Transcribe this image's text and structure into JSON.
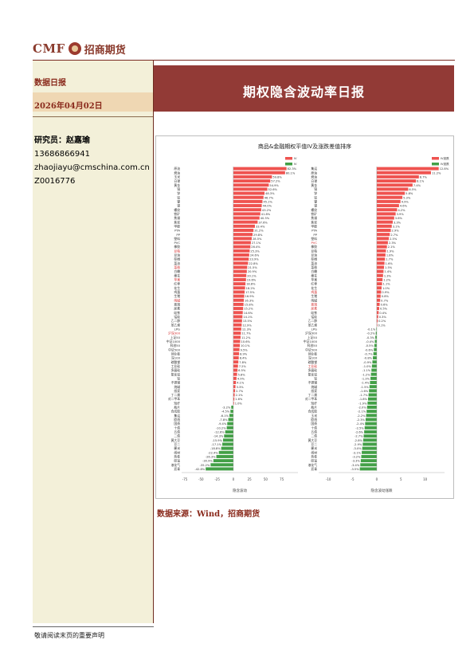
{
  "header": {
    "logo_cmf": "CMF",
    "logo_cn": "招商期货",
    "banner_title": "期权隐含波动率日报"
  },
  "sidebar": {
    "doc_type": "数据日报",
    "date": "2026年04月02日",
    "analyst_label": "研究员：赵嘉瑜",
    "phone": "13686866941",
    "email": "zhaojiayu@cmschina.com.cn",
    "license": "Z0016776"
  },
  "colors": {
    "banner": "#923a36",
    "positive": "#ef5350",
    "negative": "#43a047",
    "sidebar_bg": "#f3f0d9",
    "sidebar_band": "#efd7b3",
    "accent_text": "#8a2a1c"
  },
  "source": "数据来源：Wind，招商期货",
  "footer": "敬请阅读末页的重要声明",
  "chart_data": {
    "type": "bar",
    "title": "商品&金融期权平值IV及涨跌差值排序",
    "panels": [
      {
        "legend": [
          "IV",
          "IV"
        ],
        "xlabel": "隐含波动",
        "xlim": [
          -80,
          100
        ],
        "xticks": [
          -75,
          -50,
          -25,
          0,
          25,
          50,
          75
        ],
        "values": [
          82.3,
          80.1,
          59.8,
          57.2,
          54.9,
          52.6,
          48.3,
          46.7,
          45.1,
          44.0,
          43.2,
          41.8,
          40.5,
          37.6,
          33.4,
          31.2,
          29.8,
          28.5,
          27.1,
          26.4,
          25.3,
          24.6,
          23.9,
          22.8,
          21.5,
          20.9,
          20.1,
          19.6,
          18.8,
          18.2,
          17.5,
          16.9,
          16.3,
          15.8,
          15.2,
          14.6,
          14.1,
          13.5,
          12.9,
          12.3,
          11.7,
          11.2,
          10.6,
          10.1,
          9.5,
          8.9,
          8.4,
          7.8,
          7.2,
          6.5,
          5.8,
          4.9,
          4.1,
          3.3,
          2.7,
          2.1,
          1.6,
          1.0,
          -3.2,
          -4.5,
          -6.1,
          -7.8,
          -9.4,
          -10.2,
          -12.6,
          -14.3,
          -15.9,
          -17.1,
          -18.8,
          -22.4,
          -26.3,
          -30.9,
          -35.2,
          -42.8
        ],
        "value_labels": [
          "82.3%",
          "80.1%",
          "59.8%",
          "57.2%",
          "54.9%",
          "52.6%",
          "48.3%",
          "46.7%",
          "45.1%",
          "44.0%",
          "43.2%",
          "41.8%",
          "40.5%",
          "37.6%",
          "33.4%",
          "31.2%",
          "29.8%",
          "28.5%",
          "27.1%",
          "26.4%",
          "25.3%",
          "24.6%",
          "23.9%",
          "22.8%",
          "21.5%",
          "20.9%",
          "20.1%",
          "19.6%",
          "18.8%",
          "18.2%",
          "17.5%",
          "16.9%",
          "16.3%",
          "15.8%",
          "15.2%",
          "14.6%",
          "14.1%",
          "13.5%",
          "12.9%",
          "12.3%",
          "11.7%",
          "11.2%",
          "10.6%",
          "10.1%",
          "9.5%",
          "8.9%",
          "8.4%",
          "7.8%",
          "7.2%",
          "6.5%",
          "5.8%",
          "4.9%",
          "4.1%",
          "3.3%",
          "2.7%",
          "2.1%",
          "1.6%",
          "1.0%",
          "-3.2%",
          "-4.5%",
          "-6.1%",
          "-7.8%",
          "-9.4%",
          "-10.2%",
          "-12.6%",
          "-14.3%",
          "-15.9%",
          "-17.1%",
          "-18.8%",
          "-22.4%",
          "-26.3%",
          "-30.9%",
          "-35.2%",
          "-42.8%"
        ],
        "categories": [
          "原油",
          "燃油",
          "玉米",
          "白银",
          "黄金",
          "铜",
          "锌",
          "铝",
          "镍",
          "锡",
          "螺纹",
          "铁矿",
          "焦煤",
          "焦炭",
          "甲醇",
          "PTA",
          "PP",
          "塑料",
          "PVC",
          "橡胶",
          "豆粕",
          "豆油",
          "棕榈",
          "菜油",
          "菜粕",
          "白糖",
          "棉花",
          "苹果",
          "红枣",
          "花生",
          "鸡蛋",
          "生猪",
          "纯碱",
          "玻璃",
          "尿素",
          "硅铁",
          "锰硅",
          "乙二醇",
          "苯乙烯",
          "LPG",
          "沪深300",
          "上证50",
          "中证1000",
          "科创50",
          "中证500",
          "创业板",
          "深100",
          "碳酸锂",
          "工业硅",
          "多晶硅",
          "氧化铝",
          "铅",
          "不锈钢",
          "烧碱",
          "纸浆",
          "丁二烯",
          "对二甲苯",
          "短纤",
          "瓶片",
          "合成胶",
          "集运",
          "欧线",
          "国债",
          "十债",
          "五债",
          "二债",
          "黄大豆",
          "豆二",
          "粳米",
          "线材",
          "热卷",
          "硅锰",
          "液化气",
          "沥青"
        ],
        "red_label_rows": [
          20,
          24,
          27,
          32,
          40
        ]
      },
      {
        "legend": [
          "IV涨跌",
          "IV涨跌"
        ],
        "xlabel": "隐含波动涨跌",
        "xlim": [
          -12,
          14
        ],
        "xticks": [
          -10,
          -5,
          0,
          5,
          10
        ],
        "values": [
          12.8,
          11.2,
          8.7,
          8.1,
          7.4,
          6.5,
          5.8,
          5.3,
          4.9,
          4.6,
          4.2,
          3.9,
          3.6,
          3.3,
          3.1,
          2.9,
          2.7,
          2.5,
          2.3,
          2.1,
          1.9,
          1.8,
          1.7,
          1.6,
          1.5,
          1.4,
          1.3,
          1.2,
          1.1,
          1.0,
          0.9,
          0.8,
          0.7,
          0.6,
          0.5,
          0.4,
          0.3,
          0.2,
          0.1,
          -0.1,
          -0.2,
          -0.3,
          -0.4,
          -0.5,
          -0.6,
          -0.7,
          -0.8,
          -0.9,
          -1.0,
          -1.1,
          -1.2,
          -1.3,
          -1.4,
          -1.5,
          -1.6,
          -1.7,
          -1.8,
          -1.9,
          -2.0,
          -2.1,
          -2.2,
          -2.3,
          -2.4,
          -2.5,
          -2.6,
          -2.7,
          -2.8,
          -2.9,
          -3.0,
          -3.1,
          -3.2,
          -3.3,
          -3.4,
          -3.5
        ],
        "value_labels": [
          "12.8%",
          "11.2%",
          "8.7%",
          "8.1%",
          "7.4%",
          "6.5%",
          "5.8%",
          "5.3%",
          "4.9%",
          "4.6%",
          "4.2%",
          "3.9%",
          "3.6%",
          "3.3%",
          "3.1%",
          "2.9%",
          "2.7%",
          "2.5%",
          "2.3%",
          "2.1%",
          "1.9%",
          "1.8%",
          "1.7%",
          "1.6%",
          "1.5%",
          "1.4%",
          "1.3%",
          "1.2%",
          "1.1%",
          "1.0%",
          "0.9%",
          "0.8%",
          "0.7%",
          "0.6%",
          "0.5%",
          "0.4%",
          "0.3%",
          "0.2%",
          "0.1%",
          "-0.1%",
          "-0.2%",
          "-0.3%",
          "-0.4%",
          "-0.5%",
          "-0.6%",
          "-0.7%",
          "-0.8%",
          "-0.9%",
          "-1.0%",
          "-1.1%",
          "-1.2%",
          "-1.3%",
          "-1.4%",
          "-1.5%",
          "-1.6%",
          "-1.7%",
          "-1.8%",
          "-1.9%",
          "-2.0%",
          "-2.1%",
          "-2.2%",
          "-2.3%",
          "-2.4%",
          "-2.5%",
          "-2.6%",
          "-2.7%",
          "-2.8%",
          "-2.9%",
          "-3.0%",
          "-3.1%",
          "-3.2%",
          "-3.3%",
          "-3.4%",
          "-3.5%"
        ],
        "categories": [
          "集运",
          "原油",
          "燃油",
          "白银",
          "黄金",
          "铜",
          "锌",
          "铝",
          "镍",
          "锡",
          "螺纹",
          "铁矿",
          "焦煤",
          "焦炭",
          "甲醇",
          "PTA",
          "PP",
          "塑料",
          "PVC",
          "橡胶",
          "豆粕",
          "豆油",
          "棕榈",
          "菜油",
          "菜粕",
          "白糖",
          "棉花",
          "苹果",
          "红枣",
          "花生",
          "鸡蛋",
          "生猪",
          "纯碱",
          "玻璃",
          "尿素",
          "硅铁",
          "锰硅",
          "乙二醇",
          "苯乙烯",
          "LPG",
          "沪深300",
          "上证50",
          "中证1000",
          "科创50",
          "中证500",
          "创业板",
          "深100",
          "碳酸锂",
          "工业硅",
          "多晶硅",
          "氧化铝",
          "铅",
          "不锈钢",
          "烧碱",
          "纸浆",
          "丁二烯",
          "对二甲苯",
          "短纤",
          "瓶片",
          "合成胶",
          "玉米",
          "欧线",
          "国债",
          "十债",
          "五债",
          "二债",
          "黄大豆",
          "豆二",
          "粳米",
          "线材",
          "热卷",
          "硅锰",
          "液化气",
          "沥青"
        ],
        "red_label_rows": [
          18,
          30,
          33,
          34,
          48
        ]
      }
    ]
  }
}
